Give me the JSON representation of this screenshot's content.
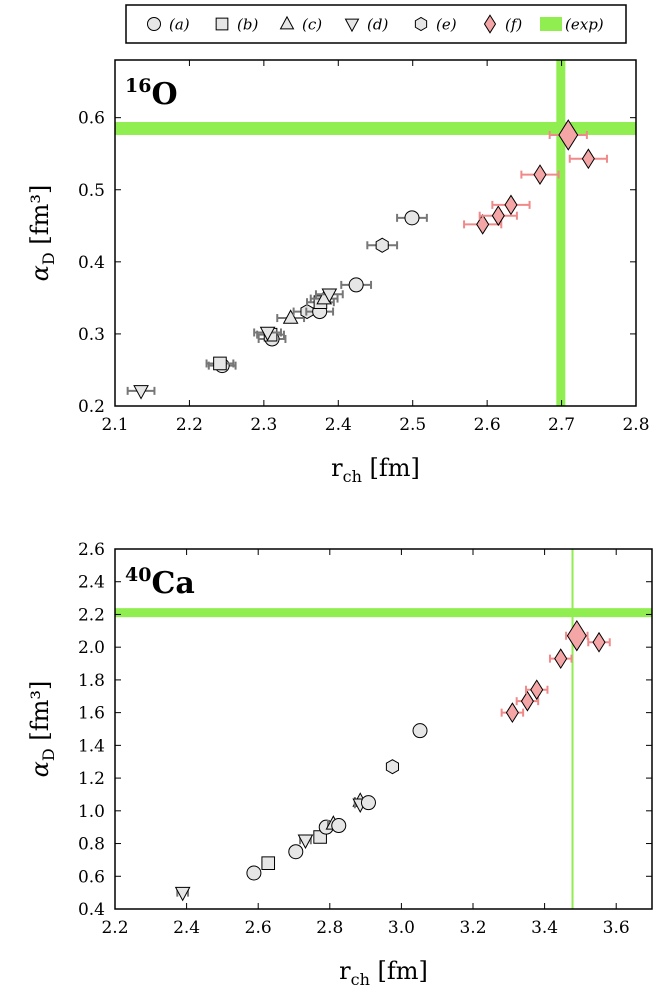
{
  "legend": [
    {
      "marker": "circle",
      "label": "(a)"
    },
    {
      "marker": "square",
      "label": "(b)"
    },
    {
      "marker": "triangle-up",
      "label": "(c)"
    },
    {
      "marker": "triangle-down",
      "label": "(d)"
    },
    {
      "marker": "hexagon",
      "label": "(e)"
    },
    {
      "marker": "diamond",
      "label": "(f)"
    },
    {
      "marker": "band",
      "label": "(exp)"
    }
  ],
  "colors": {
    "exp": "#90ee50",
    "f_fill": "#f4a6a6",
    "f_err": "#f08a8a",
    "err": "#777777",
    "marker_fill": "#e6e6e6"
  },
  "chart_data": [
    {
      "type": "scatter",
      "panel_label": {
        "mass": "16",
        "element": "O"
      },
      "xlabel": "r_ch [fm]",
      "ylabel": "α_D [fm³]",
      "xlim": [
        2.1,
        2.8
      ],
      "ylim": [
        0.2,
        0.68
      ],
      "xticks": [
        "2.1",
        "2.2",
        "2.3",
        "2.4",
        "2.5",
        "2.6",
        "2.7",
        "2.8"
      ],
      "yticks": [
        "0.2",
        "0.3",
        "0.4",
        "0.5",
        "0.6"
      ],
      "exp": {
        "x": 2.699,
        "y": 0.585
      },
      "points": [
        {
          "series": "(d)",
          "x": 2.135,
          "y": 0.221,
          "xerr": 0.018
        },
        {
          "series": "(a)",
          "x": 2.244,
          "y": 0.256,
          "xerr": 0.018
        },
        {
          "series": "(b)",
          "x": 2.241,
          "y": 0.259,
          "xerr": 0.018
        },
        {
          "series": "(a)",
          "x": 2.311,
          "y": 0.293,
          "xerr": 0.018
        },
        {
          "series": "(b)",
          "x": 2.309,
          "y": 0.299,
          "xerr": 0.018
        },
        {
          "series": "(d)",
          "x": 2.305,
          "y": 0.302,
          "xerr": 0.018
        },
        {
          "series": "(c)",
          "x": 2.336,
          "y": 0.322,
          "xerr": 0.018
        },
        {
          "series": "(e)",
          "x": 2.358,
          "y": 0.331,
          "xerr": 0.018
        },
        {
          "series": "(a)",
          "x": 2.375,
          "y": 0.331,
          "xerr": 0.018
        },
        {
          "series": "(b)",
          "x": 2.376,
          "y": 0.344,
          "xerr": 0.018
        },
        {
          "series": "(c)",
          "x": 2.381,
          "y": 0.349,
          "xerr": 0.018
        },
        {
          "series": "(d)",
          "x": 2.388,
          "y": 0.355,
          "xerr": 0.018
        },
        {
          "series": "(a)",
          "x": 2.424,
          "y": 0.368,
          "xerr": 0.02
        },
        {
          "series": "(e)",
          "x": 2.459,
          "y": 0.423,
          "xerr": 0.02
        },
        {
          "series": "(a)",
          "x": 2.499,
          "y": 0.461,
          "xerr": 0.02
        },
        {
          "series": "(f)",
          "x": 2.594,
          "y": 0.452,
          "xerr": 0.025
        },
        {
          "series": "(f)",
          "x": 2.615,
          "y": 0.464,
          "xerr": 0.025
        },
        {
          "series": "(f)",
          "x": 2.632,
          "y": 0.479,
          "xerr": 0.025
        },
        {
          "series": "(f)",
          "x": 2.671,
          "y": 0.521,
          "xerr": 0.025
        },
        {
          "series": "(f)",
          "x": 2.709,
          "y": 0.576,
          "xerr": 0.025,
          "large": true
        },
        {
          "series": "(f)",
          "x": 2.736,
          "y": 0.543,
          "xerr": 0.025
        }
      ]
    },
    {
      "type": "scatter",
      "panel_label": {
        "mass": "40",
        "element": "Ca"
      },
      "xlabel": "r_ch [fm]",
      "ylabel": "α_D [fm³]",
      "xlim": [
        2.2,
        3.7
      ],
      "ylim": [
        0.4,
        2.6
      ],
      "xticks": [
        "2.2",
        "2.4",
        "2.6",
        "2.8",
        "3.0",
        "3.2",
        "3.4",
        "3.6"
      ],
      "yticks": [
        "0.4",
        "0.6",
        "0.8",
        "1.0",
        "1.2",
        "1.4",
        "1.6",
        "1.8",
        "2.0",
        "2.2",
        "2.4",
        "2.6"
      ],
      "exp": {
        "x": 3.478,
        "y": 2.211
      },
      "points": [
        {
          "series": "(d)",
          "x": 2.389,
          "y": 0.5,
          "xerr": 0.015
        },
        {
          "series": "(a)",
          "x": 2.588,
          "y": 0.62,
          "xerr": 0.015
        },
        {
          "series": "(b)",
          "x": 2.628,
          "y": 0.68,
          "xerr": 0.015
        },
        {
          "series": "(a)",
          "x": 2.705,
          "y": 0.75,
          "xerr": 0.015
        },
        {
          "series": "(d)",
          "x": 2.732,
          "y": 0.82,
          "xerr": 0.015
        },
        {
          "series": "(b)",
          "x": 2.773,
          "y": 0.84,
          "xerr": 0.015
        },
        {
          "series": "(a)",
          "x": 2.79,
          "y": 0.9,
          "xerr": 0.015
        },
        {
          "series": "(c)",
          "x": 2.81,
          "y": 0.92,
          "xerr": 0.015
        },
        {
          "series": "(a)",
          "x": 2.825,
          "y": 0.91,
          "xerr": 0.015
        },
        {
          "series": "(c)",
          "x": 2.885,
          "y": 1.06,
          "xerr": 0.015
        },
        {
          "series": "(d)",
          "x": 2.885,
          "y": 1.04,
          "xerr": 0.015
        },
        {
          "series": "(a)",
          "x": 2.908,
          "y": 1.05,
          "xerr": 0.015
        },
        {
          "series": "(e)",
          "x": 2.975,
          "y": 1.27,
          "xerr": 0.015
        },
        {
          "series": "(a)",
          "x": 3.052,
          "y": 1.49,
          "xerr": 0.015
        },
        {
          "series": "(f)",
          "x": 3.31,
          "y": 1.6,
          "xerr": 0.03
        },
        {
          "series": "(f)",
          "x": 3.352,
          "y": 1.67,
          "xerr": 0.03
        },
        {
          "series": "(f)",
          "x": 3.378,
          "y": 1.74,
          "xerr": 0.03
        },
        {
          "series": "(f)",
          "x": 3.445,
          "y": 1.93,
          "xerr": 0.03
        },
        {
          "series": "(f)",
          "x": 3.49,
          "y": 2.07,
          "xerr": 0.03,
          "large": true
        },
        {
          "series": "(f)",
          "x": 3.552,
          "y": 2.03,
          "xerr": 0.03
        }
      ]
    }
  ]
}
